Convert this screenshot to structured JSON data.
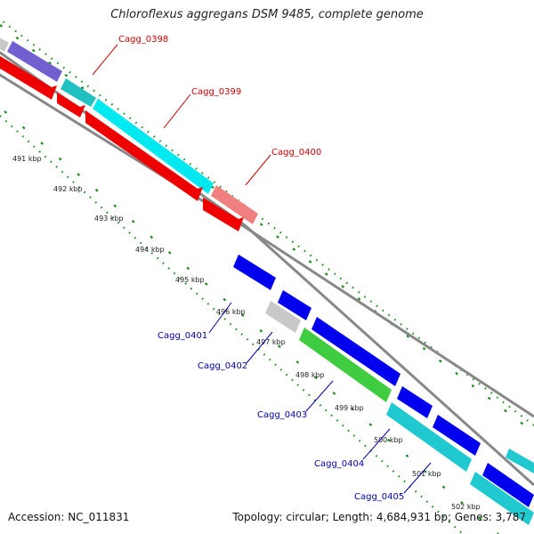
{
  "title": "Chloroflexus aggregans DSM 9485, complete genome",
  "footer": {
    "accession": "Accession: NC_011831",
    "summary": "Topology: circular; Length: 4,684,931 bp; Genes: 3,787"
  },
  "colors": {
    "backbone": "#888888",
    "gc_ticks": "#1a8a1a",
    "label_forward": "#cc0000",
    "label_reverse": "#0000aa"
  },
  "kbp_ticks": [
    {
      "label": "491 kbp"
    },
    {
      "label": "492 kbp"
    },
    {
      "label": "493 kbp"
    },
    {
      "label": "494 kbp"
    },
    {
      "label": "495 kbp"
    },
    {
      "label": "496 kbp"
    },
    {
      "label": "497 kbp"
    },
    {
      "label": "498 kbp"
    },
    {
      "label": "499 kbp"
    },
    {
      "label": "500 kbp"
    },
    {
      "label": "501 kbp"
    },
    {
      "label": "502 kbp"
    }
  ],
  "gene_labels": [
    {
      "label": "Cagg_0398",
      "color": "#cc0000"
    },
    {
      "label": "Cagg_0399",
      "color": "#cc0000"
    },
    {
      "label": "Cagg_0400",
      "color": "#cc0000"
    },
    {
      "label": "Cagg_0401",
      "color": "#0000aa"
    },
    {
      "label": "Cagg_0402",
      "color": "#0000aa"
    },
    {
      "label": "Cagg_0403",
      "color": "#0000aa"
    },
    {
      "label": "Cagg_0404",
      "color": "#0000aa"
    },
    {
      "label": "Cagg_0405",
      "color": "#0000aa"
    }
  ]
}
